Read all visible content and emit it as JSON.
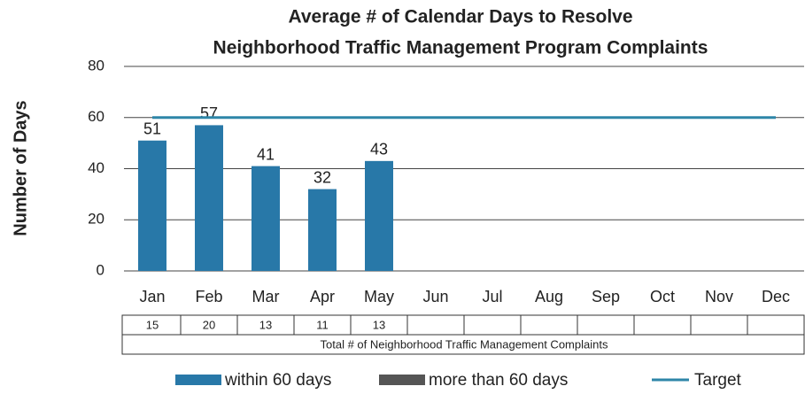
{
  "chart_data": {
    "type": "bar",
    "title": "Average # of Calendar Days to Resolve",
    "subtitle": "Neighborhood Traffic Management Program Complaints",
    "y_label": "Number of Days",
    "categories": [
      "Jan",
      "Feb",
      "Mar",
      "Apr",
      "May",
      "Jun",
      "Jul",
      "Aug",
      "Sep",
      "Oct",
      "Nov",
      "Dec"
    ],
    "series": [
      {
        "name": "within 60 days",
        "color": "#2878a8",
        "values": [
          51,
          57,
          41,
          32,
          43,
          null,
          null,
          null,
          null,
          null,
          null,
          null
        ]
      },
      {
        "name": "more than 60 days",
        "color": "#555555",
        "values": [
          null,
          null,
          null,
          null,
          null,
          null,
          null,
          null,
          null,
          null,
          null,
          null
        ]
      },
      {
        "name": "Target",
        "color": "#2e86a8",
        "type": "line",
        "values": [
          60,
          60,
          60,
          60,
          60,
          60,
          60,
          60,
          60,
          60,
          60,
          60
        ]
      }
    ],
    "ylim": [
      0,
      80
    ],
    "yticks": [
      0,
      20,
      40,
      60,
      80
    ],
    "grid": true,
    "table": {
      "label": "Total # of Neighborhood Traffic Management Complaints",
      "values": [
        15,
        20,
        13,
        11,
        13,
        null,
        null,
        null,
        null,
        null,
        null,
        null
      ]
    },
    "legend": "bottom"
  }
}
